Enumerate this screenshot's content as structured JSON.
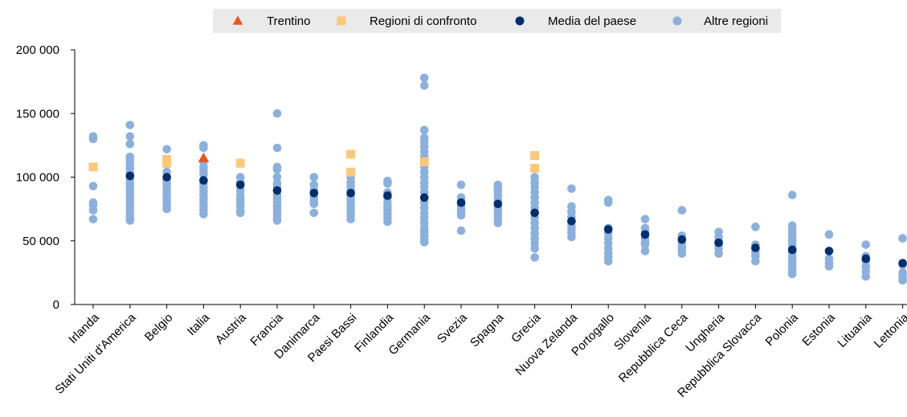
{
  "chart_data": {
    "type": "scatter",
    "categories": [
      "Irlanda",
      "Stati Uniti d'America",
      "Belgio",
      "Italia",
      "Austria",
      "Francia",
      "Danimarca",
      "Paesi Bassi",
      "Finlandia",
      "Germania",
      "Svezia",
      "Spagna",
      "Grecia",
      "Nuova Zelanda",
      "Portogallo",
      "Slovenia",
      "Repubblica Ceca",
      "Ungheria",
      "Repubblica Slovacca",
      "Polonia",
      "Estonia",
      "Lituania",
      "Lettonia"
    ],
    "ylim": [
      0,
      200000
    ],
    "yticks": [
      0,
      50000,
      100000,
      150000,
      200000
    ],
    "ytick_labels": [
      "0",
      "50 000",
      "100 000",
      "150 000",
      "200 000"
    ],
    "grid": false,
    "legend_position": "top",
    "series": [
      {
        "name": "Altre regioni",
        "color": "#8CB0DC",
        "marker": "circle",
        "points": [
          [
            0,
            132000
          ],
          [
            0,
            130000
          ],
          [
            0,
            93000
          ],
          [
            0,
            80000
          ],
          [
            0,
            78000
          ],
          [
            0,
            74000
          ],
          [
            0,
            67000
          ],
          [
            1,
            141000
          ],
          [
            1,
            132000
          ],
          [
            1,
            126000
          ],
          [
            1,
            116000
          ],
          [
            1,
            113000
          ],
          [
            1,
            110000
          ],
          [
            1,
            107000
          ],
          [
            1,
            104000
          ],
          [
            1,
            98000
          ],
          [
            1,
            95000
          ],
          [
            1,
            92000
          ],
          [
            1,
            89000
          ],
          [
            1,
            86000
          ],
          [
            1,
            83000
          ],
          [
            1,
            80000
          ],
          [
            1,
            77000
          ],
          [
            1,
            74000
          ],
          [
            1,
            71000
          ],
          [
            1,
            68000
          ],
          [
            1,
            66000
          ],
          [
            2,
            122000
          ],
          [
            2,
            110000
          ],
          [
            2,
            104000
          ],
          [
            2,
            98000
          ],
          [
            2,
            95000
          ],
          [
            2,
            92000
          ],
          [
            2,
            89000
          ],
          [
            2,
            86000
          ],
          [
            2,
            83000
          ],
          [
            2,
            80000
          ],
          [
            2,
            77000
          ],
          [
            2,
            75000
          ],
          [
            3,
            125000
          ],
          [
            3,
            123000
          ],
          [
            3,
            112000
          ],
          [
            3,
            108000
          ],
          [
            3,
            105000
          ],
          [
            3,
            102000
          ],
          [
            3,
            95000
          ],
          [
            3,
            92000
          ],
          [
            3,
            89000
          ],
          [
            3,
            86000
          ],
          [
            3,
            83000
          ],
          [
            3,
            80000
          ],
          [
            3,
            77000
          ],
          [
            3,
            74000
          ],
          [
            3,
            71000
          ],
          [
            4,
            100000
          ],
          [
            4,
            96000
          ],
          [
            4,
            90000
          ],
          [
            4,
            86000
          ],
          [
            4,
            83000
          ],
          [
            4,
            80000
          ],
          [
            4,
            77000
          ],
          [
            4,
            74000
          ],
          [
            4,
            72000
          ],
          [
            5,
            150000
          ],
          [
            5,
            123000
          ],
          [
            5,
            108000
          ],
          [
            5,
            106000
          ],
          [
            5,
            100000
          ],
          [
            5,
            95000
          ],
          [
            5,
            92000
          ],
          [
            5,
            86000
          ],
          [
            5,
            83000
          ],
          [
            5,
            80000
          ],
          [
            5,
            77000
          ],
          [
            5,
            74000
          ],
          [
            5,
            71000
          ],
          [
            5,
            68000
          ],
          [
            5,
            66000
          ],
          [
            6,
            100000
          ],
          [
            6,
            94000
          ],
          [
            6,
            90000
          ],
          [
            6,
            84000
          ],
          [
            6,
            81000
          ],
          [
            6,
            79000
          ],
          [
            6,
            72000
          ],
          [
            7,
            100000
          ],
          [
            7,
            96000
          ],
          [
            7,
            93000
          ],
          [
            7,
            90000
          ],
          [
            7,
            85000
          ],
          [
            7,
            82000
          ],
          [
            7,
            79000
          ],
          [
            7,
            76000
          ],
          [
            7,
            73000
          ],
          [
            7,
            70000
          ],
          [
            7,
            67000
          ],
          [
            8,
            97000
          ],
          [
            8,
            95000
          ],
          [
            8,
            88000
          ],
          [
            8,
            84000
          ],
          [
            8,
            80000
          ],
          [
            8,
            77000
          ],
          [
            8,
            74000
          ],
          [
            8,
            71000
          ],
          [
            8,
            68000
          ],
          [
            8,
            65000
          ],
          [
            9,
            178000
          ],
          [
            9,
            172000
          ],
          [
            9,
            137000
          ],
          [
            9,
            131000
          ],
          [
            9,
            128000
          ],
          [
            9,
            124000
          ],
          [
            9,
            120000
          ],
          [
            9,
            116000
          ],
          [
            9,
            108000
          ],
          [
            9,
            104000
          ],
          [
            9,
            100000
          ],
          [
            9,
            96000
          ],
          [
            9,
            92000
          ],
          [
            9,
            88000
          ],
          [
            9,
            84000
          ],
          [
            9,
            80000
          ],
          [
            9,
            76000
          ],
          [
            9,
            72000
          ],
          [
            9,
            68000
          ],
          [
            9,
            64000
          ],
          [
            9,
            60000
          ],
          [
            9,
            57000
          ],
          [
            9,
            54000
          ],
          [
            9,
            51000
          ],
          [
            9,
            49000
          ],
          [
            10,
            94000
          ],
          [
            10,
            84000
          ],
          [
            10,
            81000
          ],
          [
            10,
            78000
          ],
          [
            10,
            75000
          ],
          [
            10,
            72000
          ],
          [
            10,
            70000
          ],
          [
            10,
            58000
          ],
          [
            11,
            94000
          ],
          [
            11,
            92000
          ],
          [
            11,
            89000
          ],
          [
            11,
            86000
          ],
          [
            11,
            83000
          ],
          [
            11,
            80000
          ],
          [
            11,
            76000
          ],
          [
            11,
            73000
          ],
          [
            11,
            70000
          ],
          [
            11,
            67000
          ],
          [
            11,
            64000
          ],
          [
            12,
            107000
          ],
          [
            12,
            100000
          ],
          [
            12,
            96000
          ],
          [
            12,
            92000
          ],
          [
            12,
            88000
          ],
          [
            12,
            84000
          ],
          [
            12,
            80000
          ],
          [
            12,
            76000
          ],
          [
            12,
            72000
          ],
          [
            12,
            68000
          ],
          [
            12,
            64000
          ],
          [
            12,
            60000
          ],
          [
            12,
            56000
          ],
          [
            12,
            52000
          ],
          [
            12,
            48000
          ],
          [
            12,
            44000
          ],
          [
            12,
            37000
          ],
          [
            13,
            91000
          ],
          [
            13,
            77000
          ],
          [
            13,
            73000
          ],
          [
            13,
            69000
          ],
          [
            13,
            65000
          ],
          [
            13,
            62000
          ],
          [
            13,
            59000
          ],
          [
            13,
            56000
          ],
          [
            13,
            53000
          ],
          [
            14,
            82000
          ],
          [
            14,
            80000
          ],
          [
            14,
            60000
          ],
          [
            14,
            56000
          ],
          [
            14,
            52000
          ],
          [
            14,
            48000
          ],
          [
            14,
            44000
          ],
          [
            14,
            40000
          ],
          [
            14,
            37000
          ],
          [
            14,
            34000
          ],
          [
            15,
            67000
          ],
          [
            15,
            60000
          ],
          [
            15,
            57000
          ],
          [
            15,
            52000
          ],
          [
            15,
            49000
          ],
          [
            15,
            47000
          ],
          [
            15,
            42000
          ],
          [
            16,
            74000
          ],
          [
            16,
            54000
          ],
          [
            16,
            51000
          ],
          [
            16,
            48000
          ],
          [
            16,
            45000
          ],
          [
            16,
            43000
          ],
          [
            16,
            40000
          ],
          [
            17,
            57000
          ],
          [
            17,
            53000
          ],
          [
            17,
            50000
          ],
          [
            17,
            47000
          ],
          [
            17,
            44000
          ],
          [
            17,
            40000
          ],
          [
            18,
            61000
          ],
          [
            18,
            47000
          ],
          [
            18,
            44000
          ],
          [
            18,
            41000
          ],
          [
            18,
            38000
          ],
          [
            18,
            34000
          ],
          [
            19,
            86000
          ],
          [
            19,
            62000
          ],
          [
            19,
            59000
          ],
          [
            19,
            56000
          ],
          [
            19,
            53000
          ],
          [
            19,
            50000
          ],
          [
            19,
            47000
          ],
          [
            19,
            44000
          ],
          [
            19,
            41000
          ],
          [
            19,
            38000
          ],
          [
            19,
            35000
          ],
          [
            19,
            32000
          ],
          [
            19,
            29000
          ],
          [
            19,
            26000
          ],
          [
            19,
            24000
          ],
          [
            20,
            55000
          ],
          [
            20,
            36000
          ],
          [
            20,
            33000
          ],
          [
            20,
            30000
          ],
          [
            21,
            47000
          ],
          [
            21,
            38000
          ],
          [
            21,
            34000
          ],
          [
            21,
            30000
          ],
          [
            21,
            26000
          ],
          [
            21,
            22000
          ],
          [
            22,
            52000
          ],
          [
            22,
            31000
          ],
          [
            22,
            25000
          ],
          [
            22,
            22000
          ],
          [
            22,
            19000
          ]
        ]
      },
      {
        "name": "Regioni di confronto",
        "color": "#FDC77C",
        "marker": "square",
        "points": [
          [
            0,
            108000
          ],
          [
            2,
            114000
          ],
          [
            2,
            111000
          ],
          [
            4,
            111000
          ],
          [
            7,
            118000
          ],
          [
            7,
            104000
          ],
          [
            9,
            112000
          ],
          [
            12,
            117000
          ],
          [
            12,
            107000
          ]
        ]
      },
      {
        "name": "Media del paese",
        "color": "#002F6C",
        "marker": "circle",
        "points": [
          [
            1,
            101000
          ],
          [
            2,
            100000
          ],
          [
            3,
            97500
          ],
          [
            4,
            94000
          ],
          [
            5,
            89500
          ],
          [
            6,
            87500
          ],
          [
            7,
            87500
          ],
          [
            8,
            85500
          ],
          [
            9,
            84000
          ],
          [
            10,
            80000
          ],
          [
            11,
            79000
          ],
          [
            12,
            72000
          ],
          [
            13,
            65500
          ],
          [
            14,
            59000
          ],
          [
            15,
            55000
          ],
          [
            16,
            51000
          ],
          [
            17,
            48500
          ],
          [
            18,
            44500
          ],
          [
            19,
            43000
          ],
          [
            20,
            42000
          ],
          [
            21,
            36000
          ],
          [
            22,
            32500
          ]
        ]
      },
      {
        "name": "Trentino",
        "color": "#E8581C",
        "marker": "triangle",
        "points": [
          [
            3,
            115000
          ]
        ]
      }
    ],
    "legend": [
      "Trentino",
      "Regioni di confronto",
      "Media del paese",
      "Altre regioni"
    ]
  }
}
